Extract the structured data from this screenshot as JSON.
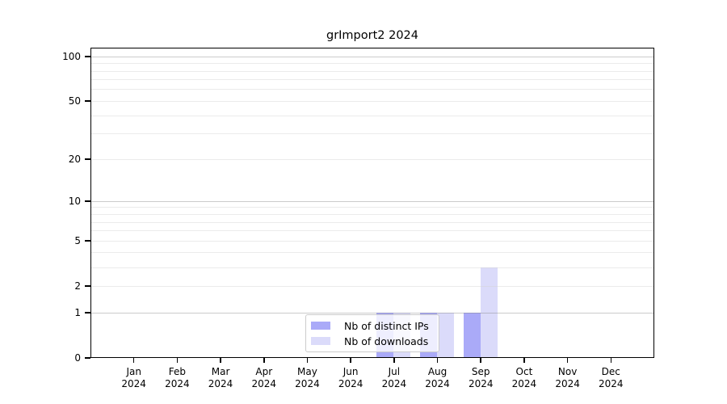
{
  "chart_data": {
    "type": "bar",
    "title": "grImport2 2024",
    "year": "2024",
    "categories": [
      "Jan",
      "Feb",
      "Mar",
      "Apr",
      "May",
      "Jun",
      "Jul",
      "Aug",
      "Sep",
      "Oct",
      "Nov",
      "Dec"
    ],
    "series": [
      {
        "name": "Nb of distinct IPs",
        "color": "#aaaaf8",
        "values": [
          0,
          0,
          0,
          0,
          0,
          0,
          1,
          1,
          1,
          0,
          0,
          0
        ]
      },
      {
        "name": "Nb of downloads",
        "color": "#dbdbfa",
        "values": [
          0,
          0,
          0,
          0,
          0,
          0,
          1,
          1,
          3,
          0,
          0,
          0
        ]
      }
    ],
    "y_axis": {
      "scale": "log1p",
      "max": 115,
      "ticks": [
        0,
        1,
        2,
        5,
        10,
        20,
        50,
        100
      ],
      "major_gridlines": [
        1,
        10,
        100
      ],
      "minor_gridlines": [
        2,
        3,
        4,
        5,
        6,
        7,
        8,
        9,
        20,
        30,
        40,
        50,
        60,
        70,
        80,
        90
      ]
    },
    "x_axis": {
      "tick_count": 12
    },
    "legend": {
      "position": "lower-center"
    },
    "colors": {
      "axis": "#000000",
      "major_grid": "#c9c9c9",
      "minor_grid": "#efefef"
    }
  }
}
